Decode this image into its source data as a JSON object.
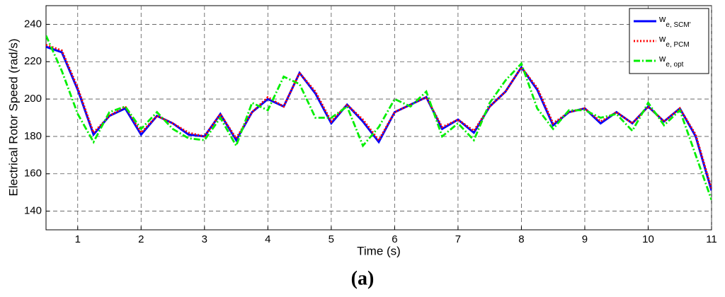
{
  "chart_data": {
    "type": "line",
    "x_label": "Time (s)",
    "y_label": "Electrical Rotor Speed (rad/s)",
    "caption": "(a)",
    "x": [
      0.5,
      0.75,
      1.0,
      1.25,
      1.5,
      1.75,
      2.0,
      2.25,
      2.5,
      2.75,
      3.0,
      3.25,
      3.5,
      3.75,
      4.0,
      4.25,
      4.5,
      4.75,
      5.0,
      5.25,
      5.5,
      5.75,
      6.0,
      6.25,
      6.5,
      6.75,
      7.0,
      7.25,
      7.5,
      7.75,
      8.0,
      8.25,
      8.5,
      8.75,
      9.0,
      9.25,
      9.5,
      9.75,
      10.0,
      10.25,
      10.5,
      10.75,
      11.0
    ],
    "series": [
      {
        "name": "we, SCM'",
        "color": "#0000ff",
        "style": "solid",
        "values": [
          228,
          225,
          205,
          181,
          191,
          195,
          181,
          191,
          187,
          181,
          180,
          192,
          178,
          193,
          200,
          196,
          214,
          203,
          187,
          197,
          188,
          177,
          193,
          197,
          201,
          184,
          189,
          182,
          196,
          204,
          217,
          205,
          186,
          193,
          195,
          187,
          193,
          187,
          196,
          188,
          195,
          180,
          151
        ]
      },
      {
        "name": "we, PCM",
        "color": "#ff0000",
        "style": "dotted",
        "values": [
          229,
          226,
          206,
          182,
          191,
          196,
          182,
          191,
          187,
          182,
          180,
          192,
          179,
          193,
          201,
          196,
          214,
          204,
          188,
          197,
          189,
          178,
          193,
          197,
          201,
          185,
          189,
          183,
          196,
          204,
          217,
          206,
          187,
          193,
          195,
          188,
          193,
          187,
          196,
          188,
          195,
          181,
          152
        ]
      },
      {
        "name": "we, opt",
        "color": "#00ee00",
        "style": "dashdot",
        "values": [
          234,
          215,
          192,
          177,
          193,
          196,
          184,
          193,
          184,
          179,
          178,
          190,
          175,
          198,
          194,
          212,
          208,
          190,
          190,
          196,
          175,
          185,
          200,
          196,
          204,
          180,
          187,
          178,
          198,
          210,
          219,
          195,
          184,
          194,
          194,
          190,
          192,
          183,
          198,
          186,
          194,
          170,
          146
        ]
      }
    ],
    "xlim": [
      0.5,
      11
    ],
    "xticks": [
      1,
      2,
      3,
      4,
      5,
      6,
      7,
      8,
      9,
      10,
      11
    ],
    "ylim": [
      130,
      250
    ],
    "yticks": [
      140,
      160,
      180,
      200,
      220,
      240
    ],
    "grid": true,
    "legend": "top-right"
  }
}
